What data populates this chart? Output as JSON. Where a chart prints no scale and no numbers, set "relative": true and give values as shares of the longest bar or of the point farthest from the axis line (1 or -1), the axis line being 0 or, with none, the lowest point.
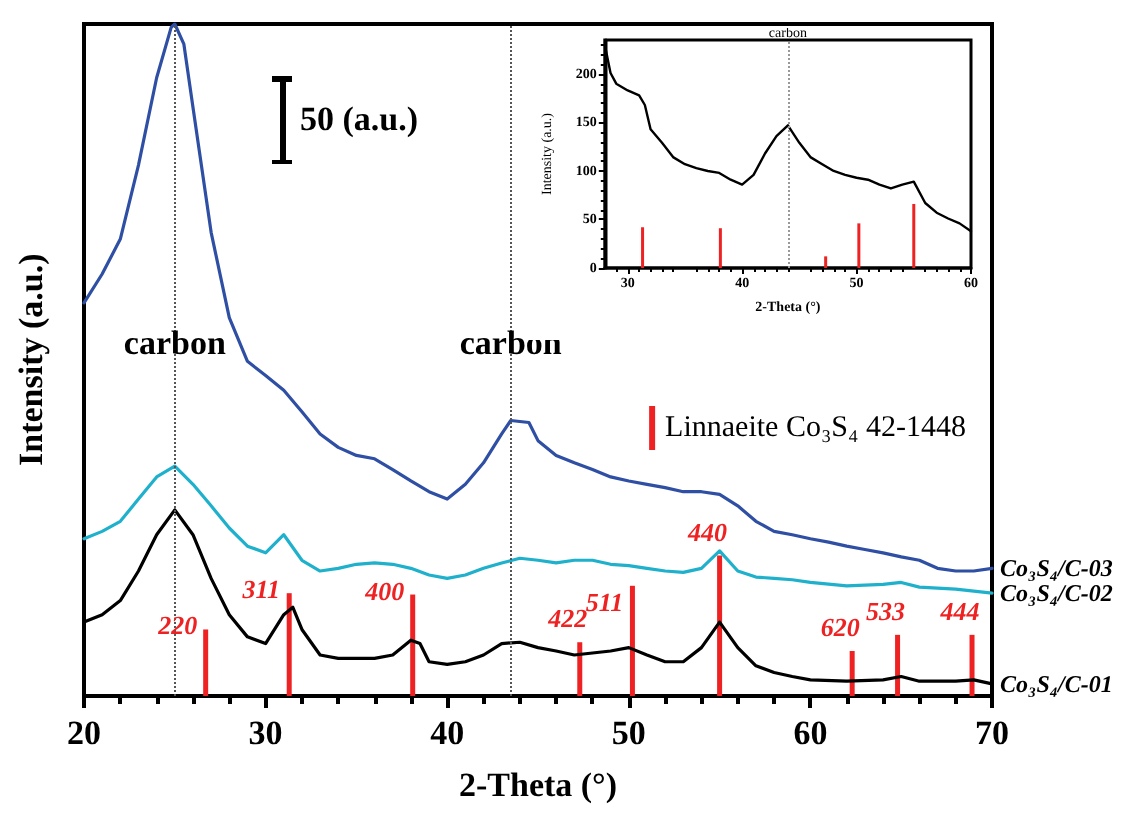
{
  "chart_data": [
    {
      "type": "line",
      "relative": true,
      "xlabel": "2-Theta (°)",
      "ylabel": "Intensity (a.u.)",
      "xlim": [
        20,
        70
      ],
      "xticks": [
        20,
        30,
        40,
        50,
        60,
        70
      ],
      "grid": false,
      "legend": "right",
      "marker": "none",
      "line_style": "solid",
      "annotations": [
        "50 (a.u.)",
        {
          "text": "220",
          "x": 26.7,
          "y": 0.099
        },
        {
          "text": "311",
          "x": 31.3,
          "y": 0.153
        },
        {
          "text": "400",
          "x": 38.1,
          "y": 0.151
        },
        {
          "text": "422",
          "x": 47.3,
          "y": 0.08
        },
        {
          "text": "511",
          "x": 50.2,
          "y": 0.164
        },
        {
          "text": "440",
          "x": 55.0,
          "y": 0.209
        },
        {
          "text": "620",
          "x": 62.3,
          "y": 0.067
        },
        {
          "text": "533",
          "x": 64.8,
          "y": 0.091
        },
        {
          "text": "444",
          "x": 68.9,
          "y": 0.091
        }
      ],
      "ref_lines": [
        {
          "axis": "x",
          "value": 25,
          "label": "carbon",
          "line_style": "dotted",
          "color": "#555555"
        },
        {
          "axis": "x",
          "value": 43.5,
          "label": "carbon",
          "line_style": "dotted",
          "color": "#555555"
        }
      ],
      "series": [
        {
          "name": "Co₃S₄/C-03",
          "color": "#2e4fa3",
          "x": [
            20,
            21,
            22,
            23,
            24,
            24.8,
            25,
            25.5,
            26,
            27,
            28,
            29,
            30,
            31,
            32,
            33,
            34,
            35,
            36,
            37,
            38,
            39,
            40,
            41,
            42,
            43,
            43.5,
            44.5,
            45,
            46,
            47,
            48,
            49,
            50,
            51,
            52,
            53,
            54,
            55,
            56,
            57,
            58,
            59,
            60,
            61,
            62,
            63,
            64,
            65,
            66,
            67,
            68,
            69,
            70
          ],
          "values": [
            0.585,
            0.628,
            0.68,
            0.79,
            0.92,
            0.995,
            1.0,
            0.97,
            0.876,
            0.69,
            0.563,
            0.498,
            0.477,
            0.455,
            0.423,
            0.39,
            0.37,
            0.358,
            0.353,
            0.337,
            0.32,
            0.304,
            0.293,
            0.315,
            0.347,
            0.39,
            0.41,
            0.407,
            0.38,
            0.358,
            0.347,
            0.337,
            0.326,
            0.32,
            0.315,
            0.31,
            0.304,
            0.304,
            0.3,
            0.283,
            0.26,
            0.245,
            0.24,
            0.234,
            0.229,
            0.223,
            0.218,
            0.213,
            0.207,
            0.202,
            0.19,
            0.186,
            0.186,
            0.19
          ]
        },
        {
          "name": "Co₃S₄/C-02",
          "color": "#1fb0cc",
          "x": [
            20,
            21,
            22,
            23,
            24,
            25,
            26,
            27,
            28,
            29,
            30,
            31,
            32,
            33,
            34,
            35,
            36,
            37,
            38,
            39,
            40,
            41,
            42,
            43,
            44,
            45,
            46,
            47,
            48,
            49,
            50,
            51,
            52,
            53,
            54,
            55,
            56,
            57,
            58,
            59,
            60,
            62,
            64,
            65,
            66,
            68,
            70
          ],
          "values": [
            0.234,
            0.245,
            0.26,
            0.293,
            0.326,
            0.342,
            0.315,
            0.283,
            0.25,
            0.223,
            0.213,
            0.24,
            0.202,
            0.186,
            0.19,
            0.196,
            0.198,
            0.196,
            0.19,
            0.18,
            0.175,
            0.18,
            0.19,
            0.198,
            0.205,
            0.202,
            0.198,
            0.202,
            0.202,
            0.196,
            0.194,
            0.19,
            0.186,
            0.184,
            0.19,
            0.216,
            0.186,
            0.177,
            0.175,
            0.173,
            0.169,
            0.164,
            0.166,
            0.169,
            0.162,
            0.159,
            0.153
          ]
        },
        {
          "name": "Co₃S₄/C-01",
          "color": "#000000",
          "x": [
            20,
            21,
            22,
            23,
            24,
            25,
            26,
            27,
            28,
            29,
            30,
            31,
            31.5,
            32,
            33,
            34,
            35,
            36,
            37,
            38,
            38.5,
            39,
            40,
            41,
            42,
            43,
            44,
            45,
            46,
            47,
            48,
            49,
            50,
            51,
            52,
            53,
            54,
            55,
            56,
            57,
            58,
            59,
            60,
            62,
            64,
            65,
            66,
            68,
            69,
            70
          ],
          "values": [
            0.11,
            0.121,
            0.142,
            0.186,
            0.24,
            0.277,
            0.24,
            0.175,
            0.121,
            0.088,
            0.078,
            0.121,
            0.132,
            0.099,
            0.061,
            0.056,
            0.056,
            0.056,
            0.061,
            0.083,
            0.078,
            0.051,
            0.047,
            0.051,
            0.061,
            0.078,
            0.08,
            0.072,
            0.067,
            0.061,
            0.064,
            0.067,
            0.072,
            0.061,
            0.051,
            0.051,
            0.072,
            0.11,
            0.072,
            0.045,
            0.035,
            0.029,
            0.024,
            0.022,
            0.024,
            0.029,
            0.022,
            0.022,
            0.024,
            0.018
          ]
        },
        {
          "name": "Linnaeite Co₃S₄ 42-1448",
          "type": "bar",
          "color": "#ee2222",
          "x": [
            26.7,
            31.3,
            38.1,
            47.3,
            50.2,
            55.0,
            62.3,
            64.8,
            68.9
          ],
          "values": [
            0.099,
            0.153,
            0.151,
            0.08,
            0.164,
            0.209,
            0.067,
            0.091,
            0.091
          ]
        }
      ]
    },
    {
      "type": "line",
      "xlabel": "2-Theta (°)",
      "ylabel": "Intensity (a.u.)",
      "xlim": [
        28,
        60
      ],
      "xticks": [
        30,
        40,
        50,
        60
      ],
      "ylim": [
        0,
        235
      ],
      "yticks": [
        0,
        50,
        100,
        150,
        200
      ],
      "grid": false,
      "marker": "none",
      "line_style": "solid",
      "ref_lines": [
        {
          "axis": "x",
          "value": 44,
          "label": "carbon",
          "line_style": "dotted",
          "color": "#999999"
        }
      ],
      "series": [
        {
          "color": "#000000",
          "x": [
            28,
            28.5,
            29,
            30,
            31,
            31.5,
            32,
            33,
            34,
            35,
            36,
            37,
            38,
            39,
            40,
            41,
            42,
            43,
            44,
            45,
            46,
            47,
            48,
            49,
            50,
            51,
            52,
            53,
            54,
            55,
            56,
            57,
            58,
            59,
            60
          ],
          "values": [
            230,
            201,
            190,
            183,
            178,
            168,
            143,
            129,
            114,
            107,
            103,
            100,
            98,
            91,
            86,
            96,
            118,
            136,
            147,
            129,
            114,
            107,
            100,
            96,
            93,
            91,
            86,
            82,
            86,
            89,
            67,
            57,
            51,
            46,
            38
          ]
        },
        {
          "type": "bar",
          "color": "#ee2222",
          "x": [
            31.3,
            38.1,
            47.3,
            50.2,
            55.0
          ],
          "values": [
            42,
            41,
            12,
            46,
            66
          ]
        }
      ]
    }
  ]
}
